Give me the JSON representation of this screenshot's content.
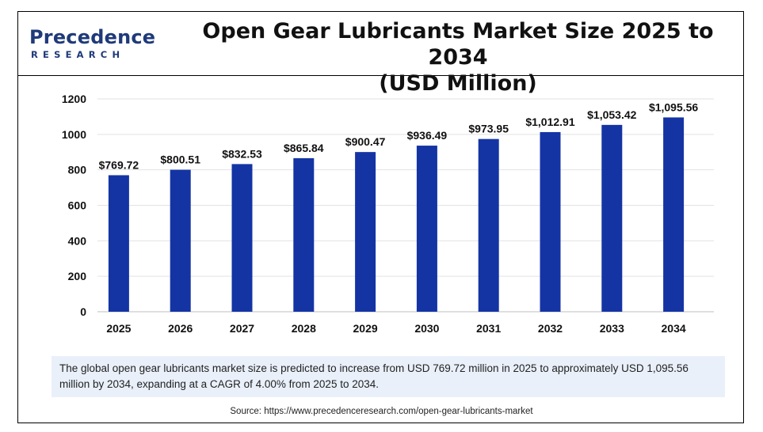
{
  "brand": {
    "name": "Precedence",
    "sub": "RESEARCH"
  },
  "title_line1": "Open Gear Lubricants Market Size 2025 to 2034",
  "title_line2": "(USD Million)",
  "chart_data": {
    "type": "bar",
    "title": "Open Gear Lubricants Market Size 2025 to 2034 (USD Million)",
    "xlabel": "",
    "ylabel": "",
    "categories": [
      "2025",
      "2026",
      "2027",
      "2028",
      "2029",
      "2030",
      "2031",
      "2032",
      "2033",
      "2034"
    ],
    "values": [
      769.72,
      800.51,
      832.53,
      865.84,
      900.47,
      936.49,
      973.95,
      1012.91,
      1053.42,
      1095.56
    ],
    "data_labels": [
      "$769.72",
      "$800.51",
      "$832.53",
      "$865.84",
      "$900.47",
      "$936.49",
      "$973.95",
      "$1,012.91",
      "$1,053.42",
      "$1,095.56"
    ],
    "yticks": [
      0,
      200,
      400,
      600,
      800,
      1000,
      1200
    ],
    "ylim": [
      0,
      1200
    ],
    "grid": true,
    "legend": "none",
    "bar_color": "#1434a4"
  },
  "note": "The global open gear lubricants market size is predicted to increase from USD 769.72 million in 2025 to approximately USD 1,095.56 million by 2034, expanding at a CAGR of 4.00% from 2025 to 2034.",
  "source": "Source: https://www.precedenceresearch.com/open-gear-lubricants-market"
}
